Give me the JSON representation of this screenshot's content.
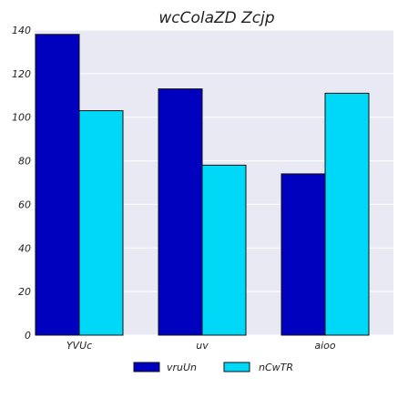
{
  "chart_data": {
    "type": "bar",
    "title": "wcColaZD Zcjp",
    "xlabel": "",
    "ylabel": "",
    "categories": [
      "YVUc",
      "uv",
      "aioo"
    ],
    "series": [
      {
        "name": "vruUn",
        "values": [
          138,
          113,
          74
        ],
        "color": "#0000bf"
      },
      {
        "name": "nCwTR",
        "values": [
          103,
          78,
          111
        ],
        "color": "#00d8f7"
      }
    ],
    "ylim": [
      0,
      140
    ],
    "yticks": [
      0,
      20,
      40,
      60,
      80,
      100,
      120,
      140
    ],
    "grid": true,
    "legend_position": "bottom-center",
    "colors": {
      "plot_background": "#e9e9f4",
      "grid": "#ffffff",
      "bar_edge": "#111111"
    }
  }
}
